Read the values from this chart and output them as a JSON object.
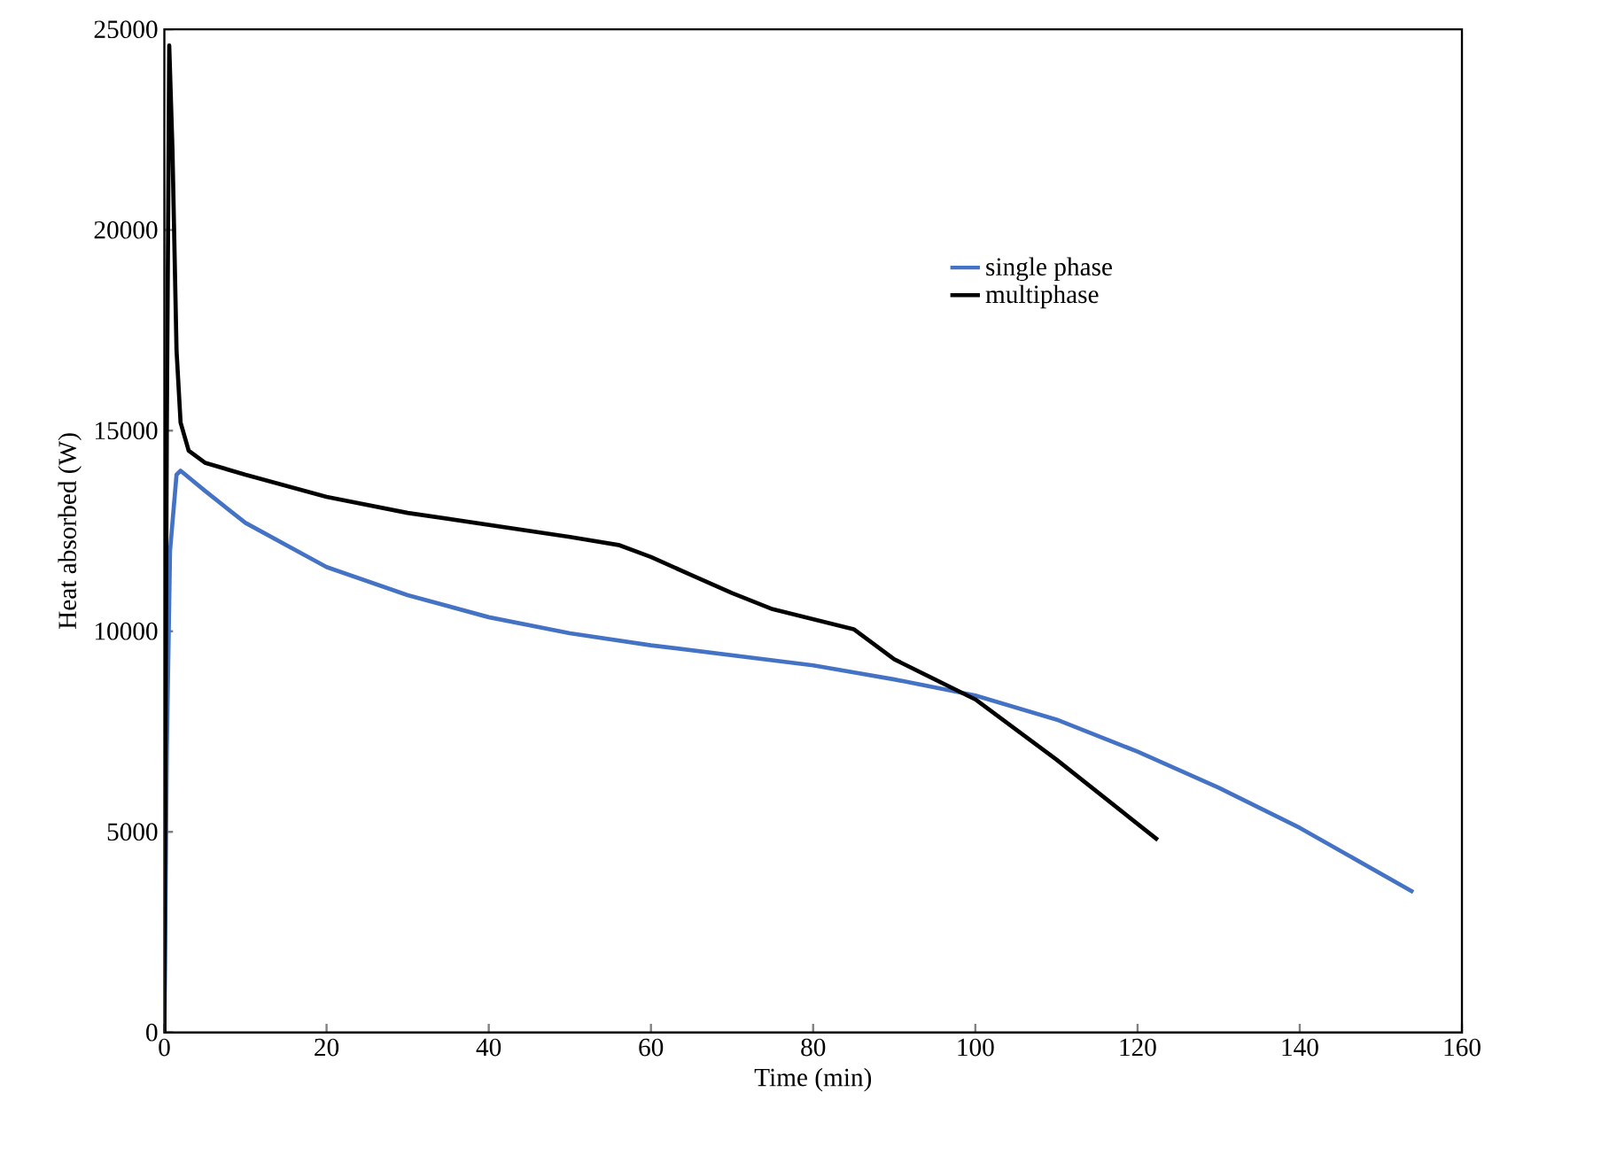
{
  "chart_data": {
    "type": "line",
    "xlabel": "Time (min)",
    "ylabel": "Heat absorbed (W)",
    "xlim": [
      0,
      160
    ],
    "xticks": [
      0,
      20,
      40,
      60,
      80,
      100,
      120,
      140,
      160
    ],
    "ylim": [
      0,
      25000
    ],
    "yticks": [
      0,
      5000,
      10000,
      15000,
      20000,
      25000
    ],
    "grid": false,
    "legend": "right",
    "marker": "none",
    "line_style": "solid",
    "series": [
      {
        "name": "single phase",
        "color": "#4472c4",
        "x": [
          0,
          0.3,
          0.7,
          1.5,
          2,
          5,
          10,
          20,
          30,
          40,
          50,
          60,
          70,
          80,
          90,
          100,
          110,
          120,
          130,
          140,
          154
        ],
        "values": [
          0,
          7000,
          12000,
          13900,
          14000,
          13500,
          12700,
          11600,
          10900,
          10350,
          9950,
          9650,
          9400,
          9150,
          8800,
          8400,
          7800,
          7000,
          6100,
          5100,
          3500
        ]
      },
      {
        "name": "multiphase",
        "color": "#000000",
        "x": [
          0,
          0.3,
          0.6,
          1,
          1.5,
          2,
          3,
          5,
          10,
          20,
          30,
          40,
          50,
          56,
          60,
          65,
          70,
          75,
          85,
          90,
          100,
          110,
          122.5
        ],
        "values": [
          0,
          15000,
          24600,
          22000,
          17000,
          15200,
          14500,
          14200,
          13900,
          13350,
          12950,
          12650,
          12350,
          12150,
          11850,
          11400,
          10950,
          10550,
          10050,
          9300,
          8300,
          6800,
          4800
        ]
      }
    ]
  }
}
